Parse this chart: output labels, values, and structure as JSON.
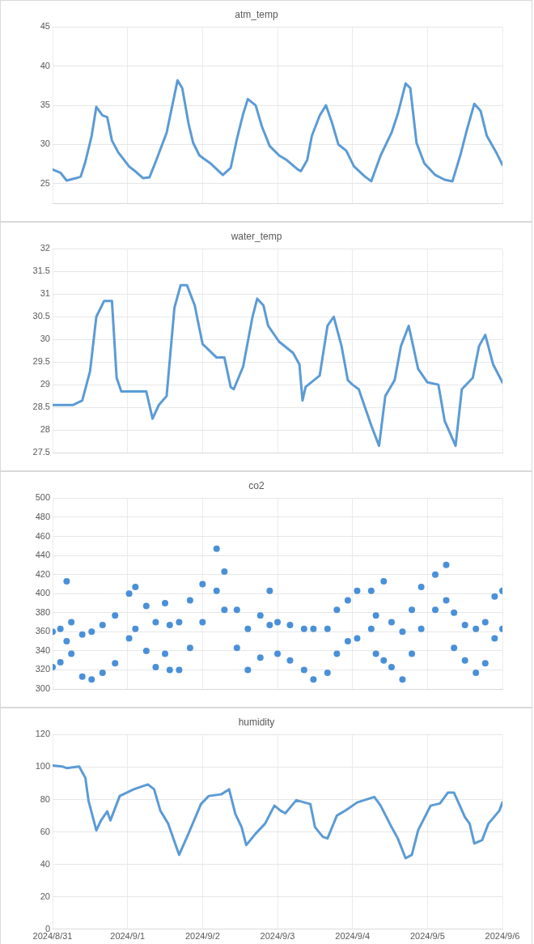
{
  "chart_data": [
    {
      "type": "line",
      "title": "atm_temp",
      "xlim": [
        "2024-08-31",
        "2024-09-06"
      ],
      "xticks": [
        {
          "value": "2024-08-31",
          "label": null
        },
        {
          "value": "2024-09-01",
          "label": null
        },
        {
          "value": "2024-09-02",
          "label": null
        },
        {
          "value": "2024-09-03",
          "label": null
        },
        {
          "value": "2024-09-04",
          "label": null
        },
        {
          "value": "2024-09-05",
          "label": null
        },
        {
          "value": "2024-09-06",
          "label": null
        }
      ],
      "ylim": [
        22.5,
        45
      ],
      "yticks": [
        25,
        30,
        35,
        40,
        45
      ],
      "grid": true,
      "tick_labels": "y",
      "series": [
        {
          "color": "#5b9bd5",
          "x": [
            "2024-08-31T00:00",
            "2024-08-31T02:30",
            "2024-08-31T04:30",
            "2024-08-31T07:30",
            "2024-08-31T09:00",
            "2024-08-31T10:30",
            "2024-08-31T12:30",
            "2024-08-31T14:00",
            "2024-08-31T16:00",
            "2024-08-31T17:30",
            "2024-08-31T19:00",
            "2024-08-31T21:00",
            "2024-09-01T00:30",
            "2024-09-01T03:00",
            "2024-09-01T05:00",
            "2024-09-01T07:00",
            "2024-09-01T09:00",
            "2024-09-01T12:30",
            "2024-09-01T16:00",
            "2024-09-01T17:30",
            "2024-09-01T19:30",
            "2024-09-01T21:00",
            "2024-09-01T23:00",
            "2024-09-02T02:30",
            "2024-09-02T06:30",
            "2024-09-02T09:00",
            "2024-09-02T11:00",
            "2024-09-02T13:00",
            "2024-09-02T14:30",
            "2024-09-02T17:00",
            "2024-09-02T19:00",
            "2024-09-02T21:30",
            "2024-09-03T00:30",
            "2024-09-03T03:00",
            "2024-09-03T06:30",
            "2024-09-03T07:30",
            "2024-09-03T09:30",
            "2024-09-03T11:00",
            "2024-09-03T13:30",
            "2024-09-03T15:30",
            "2024-09-03T17:30",
            "2024-09-03T19:30",
            "2024-09-03T22:00",
            "2024-09-04T00:30",
            "2024-09-04T04:00",
            "2024-09-04T06:00",
            "2024-09-04T09:00",
            "2024-09-04T12:30",
            "2024-09-04T14:30",
            "2024-09-04T17:00",
            "2024-09-04T18:30",
            "2024-09-04T20:30",
            "2024-09-04T23:00",
            "2024-09-05T02:30",
            "2024-09-05T05:30",
            "2024-09-05T08:00",
            "2024-09-05T10:30",
            "2024-09-05T12:30",
            "2024-09-05T15:00",
            "2024-09-05T17:00",
            "2024-09-05T19:00",
            "2024-09-05T22:00",
            "2024-09-06T00:00"
          ],
          "values": [
            26.8,
            26.4,
            25.4,
            25.7,
            25.9,
            27.8,
            31.1,
            34.8,
            33.7,
            33.5,
            30.5,
            29.0,
            27.2,
            26.4,
            25.7,
            25.8,
            27.8,
            31.5,
            38.2,
            37.2,
            32.7,
            30.2,
            28.6,
            27.6,
            26.1,
            27.0,
            30.7,
            33.9,
            35.8,
            35.0,
            32.3,
            29.8,
            28.6,
            28.0,
            26.8,
            26.6,
            28.0,
            31.1,
            33.7,
            35.0,
            32.7,
            30.0,
            29.2,
            27.2,
            25.9,
            25.3,
            28.6,
            31.5,
            33.9,
            37.8,
            37.2,
            30.2,
            27.6,
            26.1,
            25.5,
            25.3,
            28.6,
            31.7,
            35.2,
            34.3,
            31.1,
            29.0,
            27.4
          ]
        }
      ]
    },
    {
      "type": "line",
      "title": "water_temp",
      "xlim": [
        "2024-08-31",
        "2024-09-06"
      ],
      "xticks": [
        {
          "value": "2024-08-31",
          "label": null
        },
        {
          "value": "2024-09-01",
          "label": null
        },
        {
          "value": "2024-09-02",
          "label": null
        },
        {
          "value": "2024-09-03",
          "label": null
        },
        {
          "value": "2024-09-04",
          "label": null
        },
        {
          "value": "2024-09-05",
          "label": null
        },
        {
          "value": "2024-09-06",
          "label": null
        }
      ],
      "ylim": [
        27.5,
        32
      ],
      "yticks": [
        27.5,
        28,
        28.5,
        29,
        29.5,
        30,
        30.5,
        31,
        31.5,
        32
      ],
      "grid": true,
      "tick_labels": "y",
      "series": [
        {
          "color": "#5b9bd5",
          "x": [
            "2024-08-31T00:00",
            "2024-08-31T06:30",
            "2024-08-31T09:30",
            "2024-08-31T12:00",
            "2024-08-31T14:00",
            "2024-08-31T16:30",
            "2024-08-31T19:00",
            "2024-08-31T20:30",
            "2024-08-31T22:00",
            "2024-09-01T06:00",
            "2024-09-01T08:00",
            "2024-09-01T10:00",
            "2024-09-01T12:30",
            "2024-09-01T15:00",
            "2024-09-01T17:00",
            "2024-09-01T19:00",
            "2024-09-01T21:30",
            "2024-09-02T00:00",
            "2024-09-02T04:30",
            "2024-09-02T07:00",
            "2024-09-02T09:00",
            "2024-09-02T10:00",
            "2024-09-02T13:00",
            "2024-09-02T16:00",
            "2024-09-02T17:30",
            "2024-09-02T19:30",
            "2024-09-02T21:00",
            "2024-09-03T00:30",
            "2024-09-03T05:00",
            "2024-09-03T07:00",
            "2024-09-03T08:00",
            "2024-09-03T09:00",
            "2024-09-03T13:30",
            "2024-09-03T16:00",
            "2024-09-03T18:00",
            "2024-09-03T20:30",
            "2024-09-03T22:30",
            "2024-09-04T00:00",
            "2024-09-04T02:00",
            "2024-09-04T06:00",
            "2024-09-04T08:30",
            "2024-09-04T10:30",
            "2024-09-04T13:30",
            "2024-09-04T15:30",
            "2024-09-04T18:00",
            "2024-09-04T21:00",
            "2024-09-05T00:00",
            "2024-09-05T03:30",
            "2024-09-05T05:30",
            "2024-09-05T09:00",
            "2024-09-05T11:00",
            "2024-09-05T14:30",
            "2024-09-05T16:30",
            "2024-09-05T18:30",
            "2024-09-05T21:00",
            "2024-09-06T00:00"
          ],
          "values": [
            28.55,
            28.55,
            28.65,
            29.3,
            30.5,
            30.85,
            30.85,
            29.15,
            28.85,
            28.85,
            28.25,
            28.55,
            28.75,
            30.7,
            31.2,
            31.2,
            30.75,
            29.9,
            29.6,
            29.6,
            28.95,
            28.9,
            29.4,
            30.5,
            30.9,
            30.75,
            30.3,
            29.95,
            29.7,
            29.45,
            28.65,
            28.95,
            29.2,
            30.3,
            30.5,
            29.85,
            29.1,
            29.0,
            28.9,
            28.1,
            27.65,
            28.75,
            29.1,
            29.85,
            30.3,
            29.35,
            29.05,
            29.0,
            28.2,
            27.65,
            28.9,
            29.15,
            29.85,
            30.1,
            29.45,
            29.05
          ]
        }
      ]
    },
    {
      "type": "scatter",
      "title": "co2",
      "xlim": [
        "2024-08-31",
        "2024-09-06"
      ],
      "xticks": [
        {
          "value": "2024-08-31",
          "label": null
        },
        {
          "value": "2024-09-01",
          "label": null
        },
        {
          "value": "2024-09-02",
          "label": null
        },
        {
          "value": "2024-09-03",
          "label": null
        },
        {
          "value": "2024-09-04",
          "label": null
        },
        {
          "value": "2024-09-05",
          "label": null
        },
        {
          "value": "2024-09-06",
          "label": null
        }
      ],
      "ylim": [
        300,
        500
      ],
      "yticks": [
        300,
        320,
        340,
        360,
        380,
        400,
        420,
        440,
        460,
        480,
        500
      ],
      "grid": true,
      "tick_labels": "y",
      "marker": "circle",
      "series": [
        {
          "color": "#4a90d9",
          "x": [
            "2024-08-31T00:00",
            "2024-08-31T00:00",
            "2024-08-31T02:30",
            "2024-08-31T02:30",
            "2024-08-31T04:30",
            "2024-08-31T04:30",
            "2024-08-31T06:00",
            "2024-08-31T06:00",
            "2024-08-31T09:30",
            "2024-08-31T09:30",
            "2024-08-31T12:30",
            "2024-08-31T12:30",
            "2024-08-31T16:00",
            "2024-08-31T16:00",
            "2024-08-31T20:00",
            "2024-08-31T20:00",
            "2024-09-01T00:30",
            "2024-09-01T00:30",
            "2024-09-01T02:30",
            "2024-09-01T02:30",
            "2024-09-01T06:00",
            "2024-09-01T06:00",
            "2024-09-01T09:00",
            "2024-09-01T09:00",
            "2024-09-01T12:00",
            "2024-09-01T12:00",
            "2024-09-01T13:30",
            "2024-09-01T13:30",
            "2024-09-01T16:30",
            "2024-09-01T16:30",
            "2024-09-01T20:00",
            "2024-09-01T20:00",
            "2024-09-02T00:00",
            "2024-09-02T00:00",
            "2024-09-02T04:30",
            "2024-09-02T04:30",
            "2024-09-02T07:00",
            "2024-09-02T07:00",
            "2024-09-02T11:00",
            "2024-09-02T11:00",
            "2024-09-02T14:30",
            "2024-09-02T14:30",
            "2024-09-02T18:30",
            "2024-09-02T18:30",
            "2024-09-02T21:30",
            "2024-09-02T21:30",
            "2024-09-03T00:00",
            "2024-09-03T00:00",
            "2024-09-03T04:00",
            "2024-09-03T04:00",
            "2024-09-03T08:30",
            "2024-09-03T08:30",
            "2024-09-03T11:30",
            "2024-09-03T11:30",
            "2024-09-03T16:00",
            "2024-09-03T16:00",
            "2024-09-03T19:00",
            "2024-09-03T19:00",
            "2024-09-03T22:30",
            "2024-09-03T22:30",
            "2024-09-04T01:30",
            "2024-09-04T01:30",
            "2024-09-04T06:00",
            "2024-09-04T06:00",
            "2024-09-04T07:30",
            "2024-09-04T07:30",
            "2024-09-04T10:00",
            "2024-09-04T10:00",
            "2024-09-04T12:30",
            "2024-09-04T12:30",
            "2024-09-04T16:00",
            "2024-09-04T16:00",
            "2024-09-04T19:00",
            "2024-09-04T19:00",
            "2024-09-04T22:00",
            "2024-09-04T22:00",
            "2024-09-05T02:30",
            "2024-09-05T02:30",
            "2024-09-05T06:00",
            "2024-09-05T06:00",
            "2024-09-05T08:30",
            "2024-09-05T08:30",
            "2024-09-05T12:00",
            "2024-09-05T12:00",
            "2024-09-05T15:30",
            "2024-09-05T15:30",
            "2024-09-05T18:30",
            "2024-09-05T18:30",
            "2024-09-05T21:30",
            "2024-09-05T21:30",
            "2024-09-06T00:00",
            "2024-09-06T00:00"
          ],
          "values": [
            360,
            323,
            363,
            328,
            413,
            350,
            370,
            337,
            357,
            313,
            360,
            310,
            367,
            317,
            377,
            327,
            400,
            353,
            407,
            363,
            387,
            340,
            370,
            323,
            390,
            337,
            367,
            320,
            370,
            320,
            393,
            343,
            410,
            370,
            447,
            403,
            423,
            383,
            383,
            343,
            363,
            320,
            377,
            333,
            403,
            367,
            370,
            337,
            367,
            330,
            363,
            320,
            363,
            310,
            363,
            317,
            383,
            337,
            393,
            350,
            403,
            353,
            403,
            363,
            377,
            337,
            413,
            330,
            370,
            323,
            360,
            310,
            383,
            337,
            407,
            363,
            420,
            383,
            430,
            393,
            380,
            343,
            367,
            330,
            363,
            317,
            370,
            327,
            397,
            353,
            403,
            363
          ]
        }
      ]
    },
    {
      "type": "line",
      "title": "humidity",
      "xlim": [
        "2024-08-31",
        "2024-09-06"
      ],
      "xticks": [
        {
          "value": "2024-08-31",
          "label": "2024/8/31"
        },
        {
          "value": "2024-09-01",
          "label": "2024/9/1"
        },
        {
          "value": "2024-09-02",
          "label": "2024/9/2"
        },
        {
          "value": "2024-09-03",
          "label": "2024/9/3"
        },
        {
          "value": "2024-09-04",
          "label": "2024/9/4"
        },
        {
          "value": "2024-09-05",
          "label": "2024/9/5"
        },
        {
          "value": "2024-09-06",
          "label": "2024/9/6"
        }
      ],
      "ylim": [
        0,
        120
      ],
      "yticks": [
        0,
        20,
        40,
        60,
        80,
        100,
        120
      ],
      "grid": true,
      "series": [
        {
          "color": "#5b9bd5",
          "x": [
            "2024-08-31T00:00",
            "2024-08-31T03:00",
            "2024-08-31T04:30",
            "2024-08-31T08:30",
            "2024-08-31T10:30",
            "2024-08-31T11:30",
            "2024-08-31T14:00",
            "2024-08-31T15:30",
            "2024-08-31T17:30",
            "2024-08-31T18:30",
            "2024-08-31T21:30",
            "2024-09-01T02:00",
            "2024-09-01T06:30",
            "2024-09-01T08:30",
            "2024-09-01T10:30",
            "2024-09-01T13:00",
            "2024-09-01T16:30",
            "2024-09-01T19:30",
            "2024-09-01T23:30",
            "2024-09-02T02:00",
            "2024-09-02T06:00",
            "2024-09-02T08:30",
            "2024-09-02T10:30",
            "2024-09-02T12:30",
            "2024-09-02T14:00",
            "2024-09-02T17:00",
            "2024-09-02T20:00",
            "2024-09-02T23:00",
            "2024-09-03T01:00",
            "2024-09-03T02:30",
            "2024-09-03T06:00",
            "2024-09-03T10:30",
            "2024-09-03T12:00",
            "2024-09-03T14:30",
            "2024-09-03T16:00",
            "2024-09-03T19:00",
            "2024-09-03T22:00",
            "2024-09-04T01:30",
            "2024-09-04T07:00",
            "2024-09-04T09:00",
            "2024-09-04T12:30",
            "2024-09-04T14:30",
            "2024-09-04T17:00",
            "2024-09-04T19:00",
            "2024-09-04T21:00",
            "2024-09-05T01:00",
            "2024-09-05T04:00",
            "2024-09-05T06:30",
            "2024-09-05T08:30",
            "2024-09-05T12:00",
            "2024-09-05T13:30",
            "2024-09-05T15:00",
            "2024-09-05T17:30",
            "2024-09-05T19:30",
            "2024-09-05T23:00",
            "2024-09-06T00:00"
          ],
          "values": [
            101,
            100.4,
            99.4,
            100.4,
            93.3,
            79.2,
            61.0,
            67.1,
            72.7,
            67.1,
            82.2,
            86.3,
            89.3,
            86.3,
            73.1,
            65.1,
            45.9,
            59.0,
            77.2,
            82.2,
            83.2,
            86.3,
            71.1,
            63.0,
            51.9,
            59.0,
            65.1,
            76.2,
            73.1,
            71.5,
            79.6,
            77.2,
            63.0,
            57.0,
            56.0,
            70.1,
            73.5,
            78.2,
            81.6,
            76.2,
            63.0,
            56.0,
            43.8,
            45.9,
            61.0,
            76.2,
            77.6,
            84.2,
            84.2,
            69.1,
            65.1,
            52.9,
            55.0,
            65.1,
            73.1,
            78.2
          ]
        }
      ]
    }
  ]
}
